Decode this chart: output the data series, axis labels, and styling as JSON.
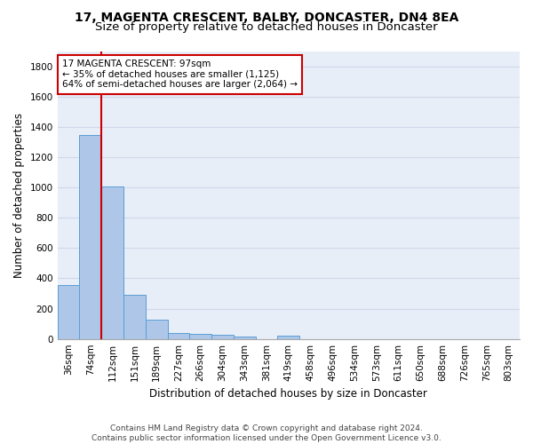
{
  "title_line1": "17, MAGENTA CRESCENT, BALBY, DONCASTER, DN4 8EA",
  "title_line2": "Size of property relative to detached houses in Doncaster",
  "xlabel": "Distribution of detached houses by size in Doncaster",
  "ylabel": "Number of detached properties",
  "footer_line1": "Contains HM Land Registry data © Crown copyright and database right 2024.",
  "footer_line2": "Contains public sector information licensed under the Open Government Licence v3.0.",
  "bin_labels": [
    "36sqm",
    "74sqm",
    "112sqm",
    "151sqm",
    "189sqm",
    "227sqm",
    "266sqm",
    "304sqm",
    "343sqm",
    "381sqm",
    "419sqm",
    "458sqm",
    "496sqm",
    "534sqm",
    "573sqm",
    "611sqm",
    "650sqm",
    "688sqm",
    "726sqm",
    "765sqm",
    "803sqm"
  ],
  "bar_values": [
    355,
    1345,
    1005,
    290,
    125,
    42,
    35,
    25,
    18,
    0,
    20,
    0,
    0,
    0,
    0,
    0,
    0,
    0,
    0,
    0,
    0
  ],
  "bar_color": "#aec6e8",
  "bar_edge_color": "#5a9fd4",
  "vline_x": 1.5,
  "annotation_title": "17 MAGENTA CRESCENT: 97sqm",
  "annotation_line1": "← 35% of detached houses are smaller (1,125)",
  "annotation_line2": "64% of semi-detached houses are larger (2,064) →",
  "annotation_box_color": "#ffffff",
  "annotation_box_edge_color": "#cc0000",
  "vline_color": "#cc0000",
  "ylim": [
    0,
    1900
  ],
  "yticks": [
    0,
    200,
    400,
    600,
    800,
    1000,
    1200,
    1400,
    1600,
    1800
  ],
  "grid_color": "#d0d8e8",
  "background_color": "#e8eef8",
  "title_fontsize": 10,
  "subtitle_fontsize": 9.5,
  "axis_label_fontsize": 8.5,
  "tick_fontsize": 7.5,
  "footer_fontsize": 6.5
}
